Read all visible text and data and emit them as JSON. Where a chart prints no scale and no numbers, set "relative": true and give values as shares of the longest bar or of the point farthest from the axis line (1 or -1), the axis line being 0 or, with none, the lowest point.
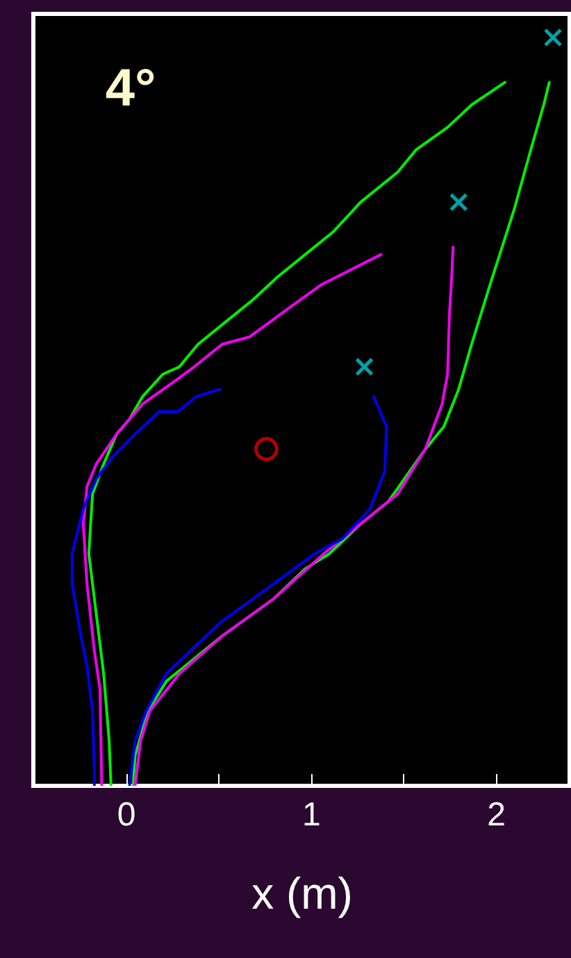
{
  "chart_data": {
    "type": "line",
    "xlabel": "x (m)",
    "annotations": [
      "4°"
    ],
    "relative": true,
    "xlim": [
      -0.5,
      2.4
    ],
    "xticks": [
      0,
      {
        "value": 0.5,
        "label": null
      },
      1,
      {
        "value": 1.5,
        "label": null
      },
      2
    ],
    "tick_labels": "x",
    "grid": false,
    "line_style": "solid",
    "series": [
      {
        "color": "#00ee00",
        "x": [
          2.05,
          1.87,
          1.74,
          1.57,
          1.47,
          1.27,
          1.12,
          0.97,
          0.82,
          0.69,
          0.54,
          0.39,
          0.29,
          0.2,
          0.09,
          0.02,
          -0.05,
          -0.12,
          -0.18,
          -0.2,
          -0.18,
          -0.15,
          -0.12,
          -0.09,
          -0.08
        ],
        "values": [
          0.94,
          0.91,
          0.88,
          0.85,
          0.82,
          0.78,
          0.74,
          0.71,
          0.68,
          0.65,
          0.62,
          0.59,
          0.56,
          0.55,
          0.52,
          0.49,
          0.47,
          0.43,
          0.39,
          0.31,
          0.27,
          0.21,
          0.15,
          0.06,
          0
        ]
      },
      {
        "color": "#00ee00",
        "x": [
          0.04,
          0.05,
          0.12,
          0.22,
          0.37,
          0.52,
          0.8,
          0.97,
          1.1,
          1.27,
          1.42,
          1.62,
          1.72,
          1.8,
          1.87,
          1.97,
          2.1,
          2.19,
          2.26,
          2.29
        ],
        "values": [
          0,
          0.04,
          0.1,
          0.14,
          0.17,
          0.2,
          0.25,
          0.29,
          0.31,
          0.35,
          0.38,
          0.45,
          0.48,
          0.53,
          0.59,
          0.67,
          0.77,
          0.85,
          0.91,
          0.94
        ]
      },
      {
        "color": "#ee00ee",
        "x": [
          1.38,
          1.22,
          1.06,
          0.89,
          0.67,
          0.52,
          0.37,
          0.26,
          0.09,
          -0.05,
          -0.16,
          -0.21,
          -0.23,
          -0.21,
          -0.17,
          -0.14,
          -0.13
        ],
        "values": [
          0.71,
          0.69,
          0.67,
          0.64,
          0.6,
          0.59,
          0.56,
          0.54,
          0.51,
          0.47,
          0.43,
          0.4,
          0.35,
          0.27,
          0.18,
          0.13,
          0
        ]
      },
      {
        "color": "#ee00ee",
        "x": [
          0.05,
          0.08,
          0.13,
          0.29,
          0.52,
          0.8,
          1.07,
          1.27,
          1.37,
          1.47,
          1.62,
          1.71,
          1.74,
          1.75,
          1.76,
          1.77
        ],
        "values": [
          0,
          0.06,
          0.1,
          0.15,
          0.2,
          0.25,
          0.31,
          0.35,
          0.37,
          0.39,
          0.45,
          0.51,
          0.55,
          0.63,
          0.67,
          0.72
        ]
      },
      {
        "color": "#0000ee",
        "x": [
          0.51,
          0.38,
          0.28,
          0.18,
          0.05,
          -0.07,
          -0.16,
          -0.23,
          -0.29,
          -0.29,
          -0.25,
          -0.21,
          -0.18,
          -0.17,
          -0.17
        ],
        "values": [
          0.53,
          0.52,
          0.5,
          0.5,
          0.47,
          0.44,
          0.41,
          0.37,
          0.31,
          0.27,
          0.21,
          0.16,
          0.1,
          0.02,
          0
        ]
      },
      {
        "color": "#0000ee",
        "x": [
          0.02,
          0.05,
          0.11,
          0.22,
          0.39,
          0.52,
          0.8,
          1.02,
          1.17,
          1.32,
          1.4,
          1.41,
          1.34
        ],
        "values": [
          0,
          0.06,
          0.1,
          0.15,
          0.19,
          0.22,
          0.27,
          0.31,
          0.33,
          0.37,
          0.42,
          0.48,
          0.52
        ]
      },
      {
        "type": "scatter",
        "marker": "cross",
        "color": "#00e5ee",
        "x": [
          2.31,
          1.8,
          1.29
        ],
        "values": [
          1,
          0.78,
          0.56
        ]
      },
      {
        "type": "scatter",
        "marker": "circle",
        "color": "#ff0000",
        "x": [
          0.76
        ],
        "values": [
          0.45
        ]
      }
    ]
  }
}
